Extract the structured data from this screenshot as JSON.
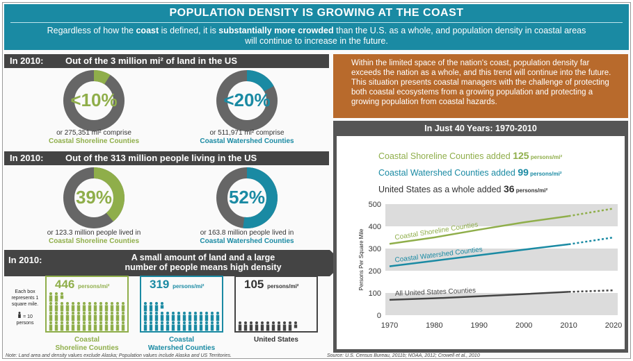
{
  "header": {
    "title": "POPULATION DENSITY IS GROWING AT THE COAST",
    "sub_a": "Regardless of how the ",
    "sub_b": "coast",
    "sub_c": " is defined, it is ",
    "sub_d": "substantially more crowded",
    "sub_e": " than the U.S. as a whole, and population density in coastal areas will continue to increase in the future."
  },
  "land": {
    "year": "In 2010:",
    "title": "Out of the 3 million mi² of land in the US",
    "shoreline": {
      "value": "<10%",
      "fraction": 0.09,
      "line1": "or 275,351 mi² comprise",
      "line2": "Coastal Shoreline Counties"
    },
    "watershed": {
      "value": "<20%",
      "fraction": 0.17,
      "line1": "or 511,971 mi² comprise",
      "line2": "Coastal Watershed Counties"
    }
  },
  "people": {
    "year": "In 2010:",
    "title": "Out of the 313 million people living in the US",
    "shoreline": {
      "value": "39%",
      "fraction": 0.39,
      "line1": "or 123.3 million people lived in",
      "line2": "Coastal Shoreline Counties"
    },
    "watershed": {
      "value": "52%",
      "fraction": 0.52,
      "line1": "or 163.8 million people lived in",
      "line2": "Coastal Watershed Counties"
    }
  },
  "density": {
    "year": "In 2010:",
    "title_line1": "A small amount of land and a large",
    "title_line2": "number of people means high density",
    "key_line1": "Each box",
    "key_line2": "represents 1",
    "key_line3": "square mile.",
    "key_persons": "= 10 persons",
    "unit": "persons/mi²",
    "boxes": [
      {
        "value": "105",
        "label1": "United States",
        "label2": "",
        "count": 10.5
      },
      {
        "value": "319",
        "label1": "Coastal",
        "label2": "Watershed Counties",
        "count": 31.9
      },
      {
        "value": "446",
        "label1": "Coastal",
        "label2": "Shoreline Counties",
        "count": 44.6
      }
    ]
  },
  "orange_text": "Within the limited space of the nation's coast, population density far exceeds the nation as a whole, and this trend will continue into the future.  This situation presents coastal managers with the challenge of protecting both coastal ecosystems from a growing population and protecting a growing population from coastal hazards.",
  "chart_title": "In Just 40 Years: 1970-2010",
  "legend": [
    {
      "text": "Coastal Shoreline Counties added ",
      "num": "125",
      "unit": " persons/mi²"
    },
    {
      "text": "Coastal Watershed Counties added ",
      "num": "99",
      "unit": " persons/mi²"
    },
    {
      "text": "United States as a whole added ",
      "num": "36",
      "unit": " persons/mi²"
    }
  ],
  "colors": {
    "teal": "#1a8aa3",
    "green": "#8fae4a",
    "dark": "#444444",
    "orange": "#b86a2c"
  },
  "chart_data": {
    "type": "line",
    "x": [
      1970,
      1980,
      1990,
      2000,
      2010,
      2020
    ],
    "ylim": [
      0,
      500
    ],
    "yticks": [
      0,
      100,
      200,
      300,
      400,
      500
    ],
    "ylabel": "Persons Per Square Mile",
    "series": [
      {
        "name": "Coastal Shoreline Counties",
        "values": [
          321,
          350,
          385,
          418,
          446,
          480
        ],
        "color": "#8fae4a"
      },
      {
        "name": "Coastal Watershed Counties",
        "values": [
          220,
          245,
          270,
          295,
          319,
          350
        ],
        "color": "#1a8aa3"
      },
      {
        "name": "All United States Counties",
        "values": [
          69,
          76,
          85,
          95,
          105,
          112
        ],
        "color": "#444444"
      }
    ]
  },
  "footnote_left": "Note: Land area and density values exclude Alaska; Population values include Alaska and US Territories.",
  "footnote_right": "Source: U.S. Census Bureau, 2011b; NOAA, 2012; Crowell et al., 2010"
}
